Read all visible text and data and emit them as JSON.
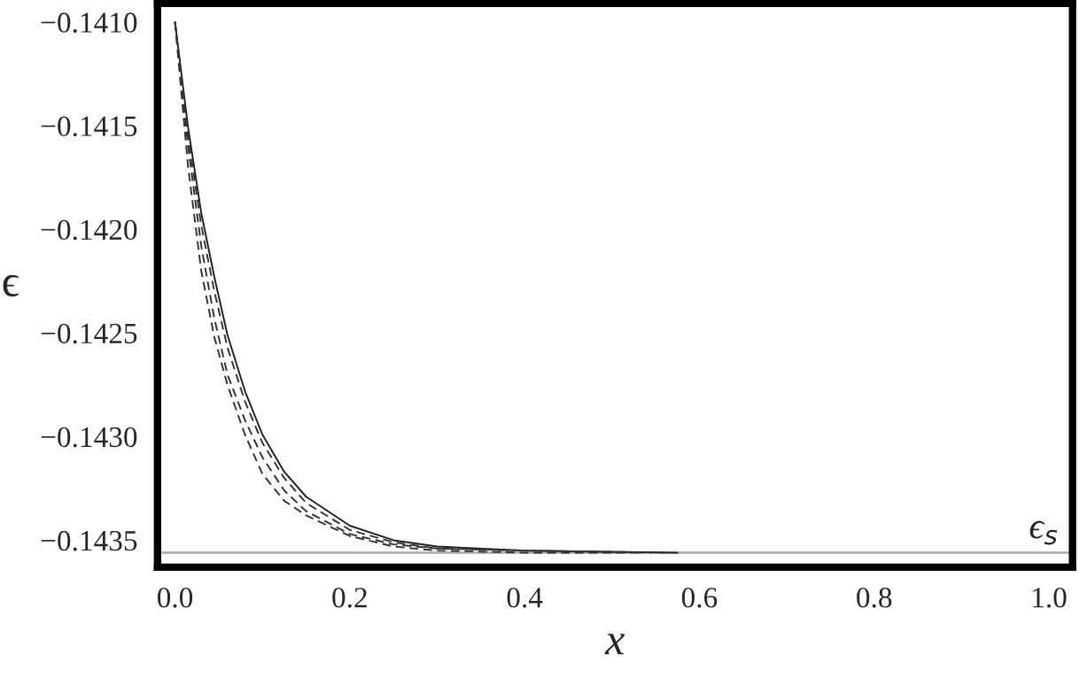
{
  "chart_data": {
    "type": "line",
    "xlabel": "x",
    "ylabel": "ϵ",
    "xlim": [
      -0.02,
      1.027
    ],
    "ylim": [
      -0.14363,
      -0.14091
    ],
    "xticks": [
      {
        "value": 0.0,
        "label": "0.0"
      },
      0.2,
      0.4,
      0.6,
      0.8,
      {
        "value": 1.0,
        "label": "1.0"
      }
    ],
    "yticks": [
      {
        "value": -0.1435,
        "label": "−0.1435"
      },
      {
        "value": -0.143,
        "label": "−0.1430"
      },
      {
        "value": -0.1425,
        "label": "−0.1425"
      },
      {
        "value": -0.142,
        "label": "−0.1420"
      },
      {
        "value": -0.1415,
        "label": "−0.1415"
      },
      {
        "value": -0.141,
        "label": "−0.1410"
      }
    ],
    "grid": false,
    "legend": false,
    "marker": "none",
    "x": [
      0,
      0.015,
      0.03,
      0.045,
      0.06,
      0.08,
      0.1,
      0.125,
      0.15,
      0.2,
      0.25,
      0.3,
      0.4,
      0.575
    ],
    "series": [
      {
        "color": "#222222",
        "line_style": "solid",
        "values": [
          -0.141,
          -0.14151,
          -0.14192,
          -0.14223,
          -0.14251,
          -0.14278,
          -0.14299,
          -0.14317,
          -0.14329,
          -0.14343,
          -0.1435,
          -0.14353,
          -0.14355,
          -0.14356
        ]
      },
      {
        "color": "#333333",
        "line_style": "dashed",
        "x": [
          0,
          0.015,
          0.03,
          0.045,
          0.06,
          0.08,
          0.1,
          0.125,
          0.15,
          0.2,
          0.25,
          0.3,
          0.4,
          0.56
        ],
        "values": [
          -0.141,
          -0.14155,
          -0.14198,
          -0.1423,
          -0.14257,
          -0.14283,
          -0.14303,
          -0.1432,
          -0.14332,
          -0.14345,
          -0.14351,
          -0.14354,
          -0.14355,
          -0.14356
        ]
      },
      {
        "color": "#333333",
        "line_style": "dashed",
        "x": [
          0,
          0.015,
          0.03,
          0.045,
          0.06,
          0.08,
          0.1,
          0.125,
          0.15,
          0.2,
          0.25,
          0.3,
          0.4,
          0.545
        ],
        "values": [
          -0.141,
          -0.1416,
          -0.14208,
          -0.14243,
          -0.1427,
          -0.14292,
          -0.1431,
          -0.14326,
          -0.14336,
          -0.14347,
          -0.14352,
          -0.14354,
          -0.14355,
          -0.14356
        ]
      },
      {
        "color": "#333333",
        "line_style": "dashed",
        "x": [
          0,
          0.015,
          0.03,
          0.045,
          0.06,
          0.08,
          0.1,
          0.125,
          0.15,
          0.2,
          0.25,
          0.3,
          0.4,
          0.53
        ],
        "values": [
          -0.141,
          -0.1417,
          -0.1422,
          -0.14252,
          -0.14275,
          -0.14299,
          -0.14318,
          -0.14331,
          -0.14338,
          -0.14348,
          -0.14353,
          -0.14355,
          -0.14356,
          -0.14356
        ]
      }
    ],
    "ref_lines": [
      {
        "axis": "y",
        "value": -0.14356,
        "label": "ϵ$_{s}$",
        "color": "#aaaaaa",
        "line_style": "solid"
      }
    ]
  }
}
